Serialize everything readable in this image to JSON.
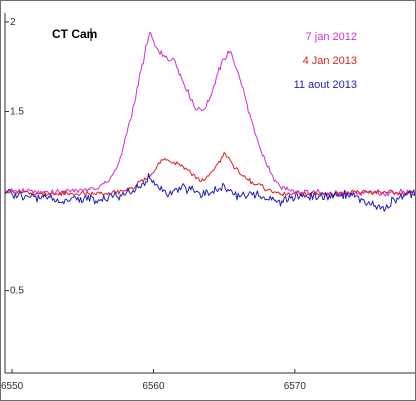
{
  "chart_data": {
    "type": "line",
    "title": "CT Cam",
    "xlabel": "",
    "ylabel": "",
    "xlim": [
      6549.5,
      6578.5
    ],
    "ylim": [
      0.04,
      2.05
    ],
    "x_ticks": [
      6550,
      6560,
      6570
    ],
    "y_ticks": [
      0.5,
      1.5,
      2
    ],
    "y_tick_labels": [
      "0.5",
      "1.5",
      "2"
    ],
    "x_tick_labels": [
      "6550",
      "6560",
      "6570"
    ],
    "grid": false,
    "legend_position": "top-right",
    "series": [
      {
        "name": "7 jan 2012",
        "color": "#d030d0",
        "x": [
          6549.5,
          6553,
          6556,
          6557,
          6557.5,
          6558,
          6558.5,
          6559,
          6559.5,
          6559.8,
          6560,
          6560.3,
          6560.7,
          6561.5,
          6562,
          6562.5,
          6563,
          6563.5,
          6564,
          6564.5,
          6565,
          6565.4,
          6565.8,
          6566.3,
          6567,
          6567.5,
          6568,
          6568.5,
          6569,
          6570,
          6571,
          6573,
          6575,
          6576.5,
          6577.5,
          6578.5
        ],
        "y": [
          1.06,
          1.05,
          1.07,
          1.13,
          1.2,
          1.34,
          1.5,
          1.68,
          1.86,
          1.95,
          1.88,
          1.85,
          1.8,
          1.79,
          1.68,
          1.6,
          1.52,
          1.5,
          1.58,
          1.7,
          1.8,
          1.83,
          1.76,
          1.64,
          1.42,
          1.3,
          1.2,
          1.13,
          1.08,
          1.05,
          1.05,
          1.04,
          1.05,
          1.04,
          1.05,
          1.05
        ]
      },
      {
        "name": "4 Jan 2013",
        "color": "#e02020",
        "x": [
          6549.5,
          6553,
          6556,
          6557.5,
          6558.5,
          6559.2,
          6560,
          6560.5,
          6561,
          6562,
          6562.5,
          6563,
          6563.5,
          6564,
          6564.5,
          6565,
          6565.5,
          6566,
          6567,
          6568,
          6568.5,
          6569,
          6570,
          6572,
          6575,
          6578.5
        ],
        "y": [
          1.05,
          1.04,
          1.04,
          1.05,
          1.07,
          1.11,
          1.16,
          1.22,
          1.23,
          1.2,
          1.17,
          1.13,
          1.11,
          1.15,
          1.2,
          1.26,
          1.22,
          1.16,
          1.1,
          1.07,
          1.05,
          1.04,
          1.04,
          1.04,
          1.05,
          1.04
        ]
      },
      {
        "name": "11 aout 2013",
        "color": "#2020c0",
        "x": [
          6549.5,
          6551,
          6553,
          6554,
          6555,
          6556,
          6557,
          6558,
          6559,
          6559.7,
          6560.3,
          6561,
          6562,
          6563,
          6564,
          6565,
          6566,
          6567,
          6568,
          6569,
          6570,
          6572,
          6574,
          6575,
          6576,
          6576.5,
          6577,
          6578,
          6578.5
        ],
        "y": [
          1.05,
          1.03,
          1.01,
          1.0,
          1.01,
          1.0,
          1.02,
          1.04,
          1.08,
          1.13,
          1.08,
          1.03,
          1.07,
          1.05,
          1.04,
          1.08,
          1.03,
          1.04,
          1.01,
          1.0,
          1.02,
          1.03,
          1.04,
          1.0,
          0.97,
          0.96,
          1.01,
          1.04,
          1.03
        ]
      }
    ]
  }
}
